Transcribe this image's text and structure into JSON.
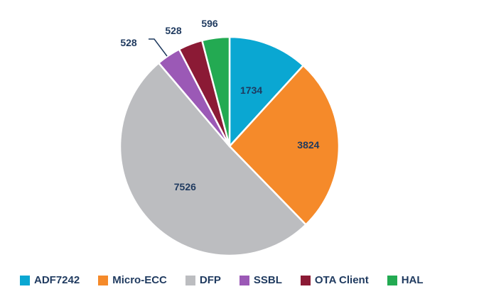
{
  "chart_data": {
    "type": "pie",
    "slices": [
      {
        "label": "ADF7242",
        "value": 1734,
        "color": "#0aa7d2"
      },
      {
        "label": "Micro-ECC",
        "value": 3824,
        "color": "#f58a2a"
      },
      {
        "label": "DFP",
        "value": 7526,
        "color": "#bcbdc0"
      },
      {
        "label": "SSBL",
        "value": 528,
        "color": "#9b59b6"
      },
      {
        "label": "OTA Client",
        "value": 528,
        "color": "#8b1a35"
      },
      {
        "label": "HAL",
        "value": 596,
        "color": "#23aa52"
      }
    ],
    "legend_position": "bottom",
    "label_color": "#1f3a5f"
  }
}
